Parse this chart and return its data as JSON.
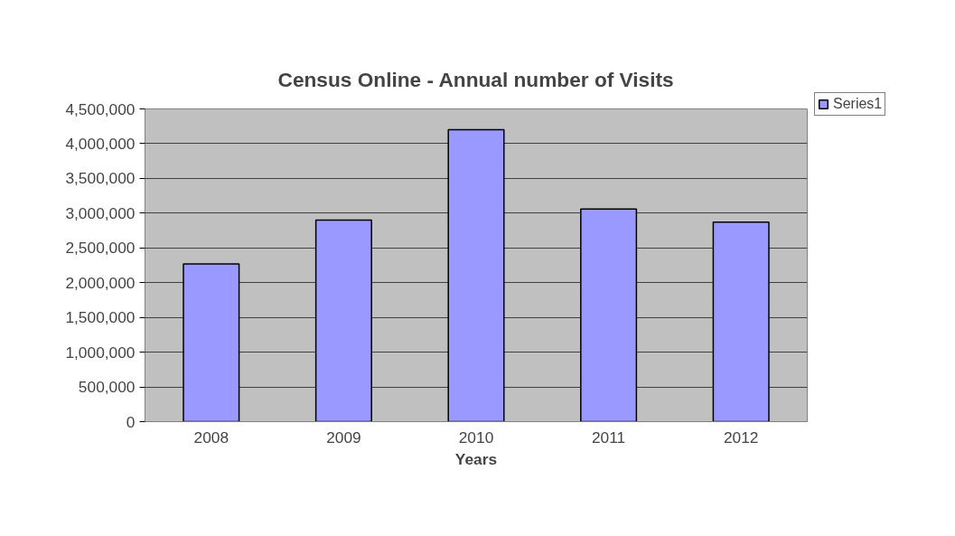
{
  "chart_data": {
    "type": "bar",
    "title": "Census Online - Annual number of Visits",
    "xlabel": "Years",
    "categories": [
      "2008",
      "2009",
      "2010",
      "2011",
      "2012"
    ],
    "series": [
      {
        "name": "Series1",
        "color": "#9999ff",
        "values": [
          2270000,
          2900000,
          4200000,
          3060000,
          2870000
        ]
      }
    ],
    "ylim": [
      0,
      4500000
    ],
    "yticks": [
      {
        "value": 0,
        "label": "0"
      },
      {
        "value": 500000,
        "label": "500,000"
      },
      {
        "value": 1000000,
        "label": "1,000,000"
      },
      {
        "value": 1500000,
        "label": "1,500,000"
      },
      {
        "value": 2000000,
        "label": "2,000,000"
      },
      {
        "value": 2500000,
        "label": "2,500,000"
      },
      {
        "value": 3000000,
        "label": "3,000,000"
      },
      {
        "value": 3500000,
        "label": "3,500,000"
      },
      {
        "value": 4000000,
        "label": "4,000,000"
      },
      {
        "value": 4500000,
        "label": "4,500,000"
      }
    ],
    "grid": "y",
    "legend": "top right"
  }
}
